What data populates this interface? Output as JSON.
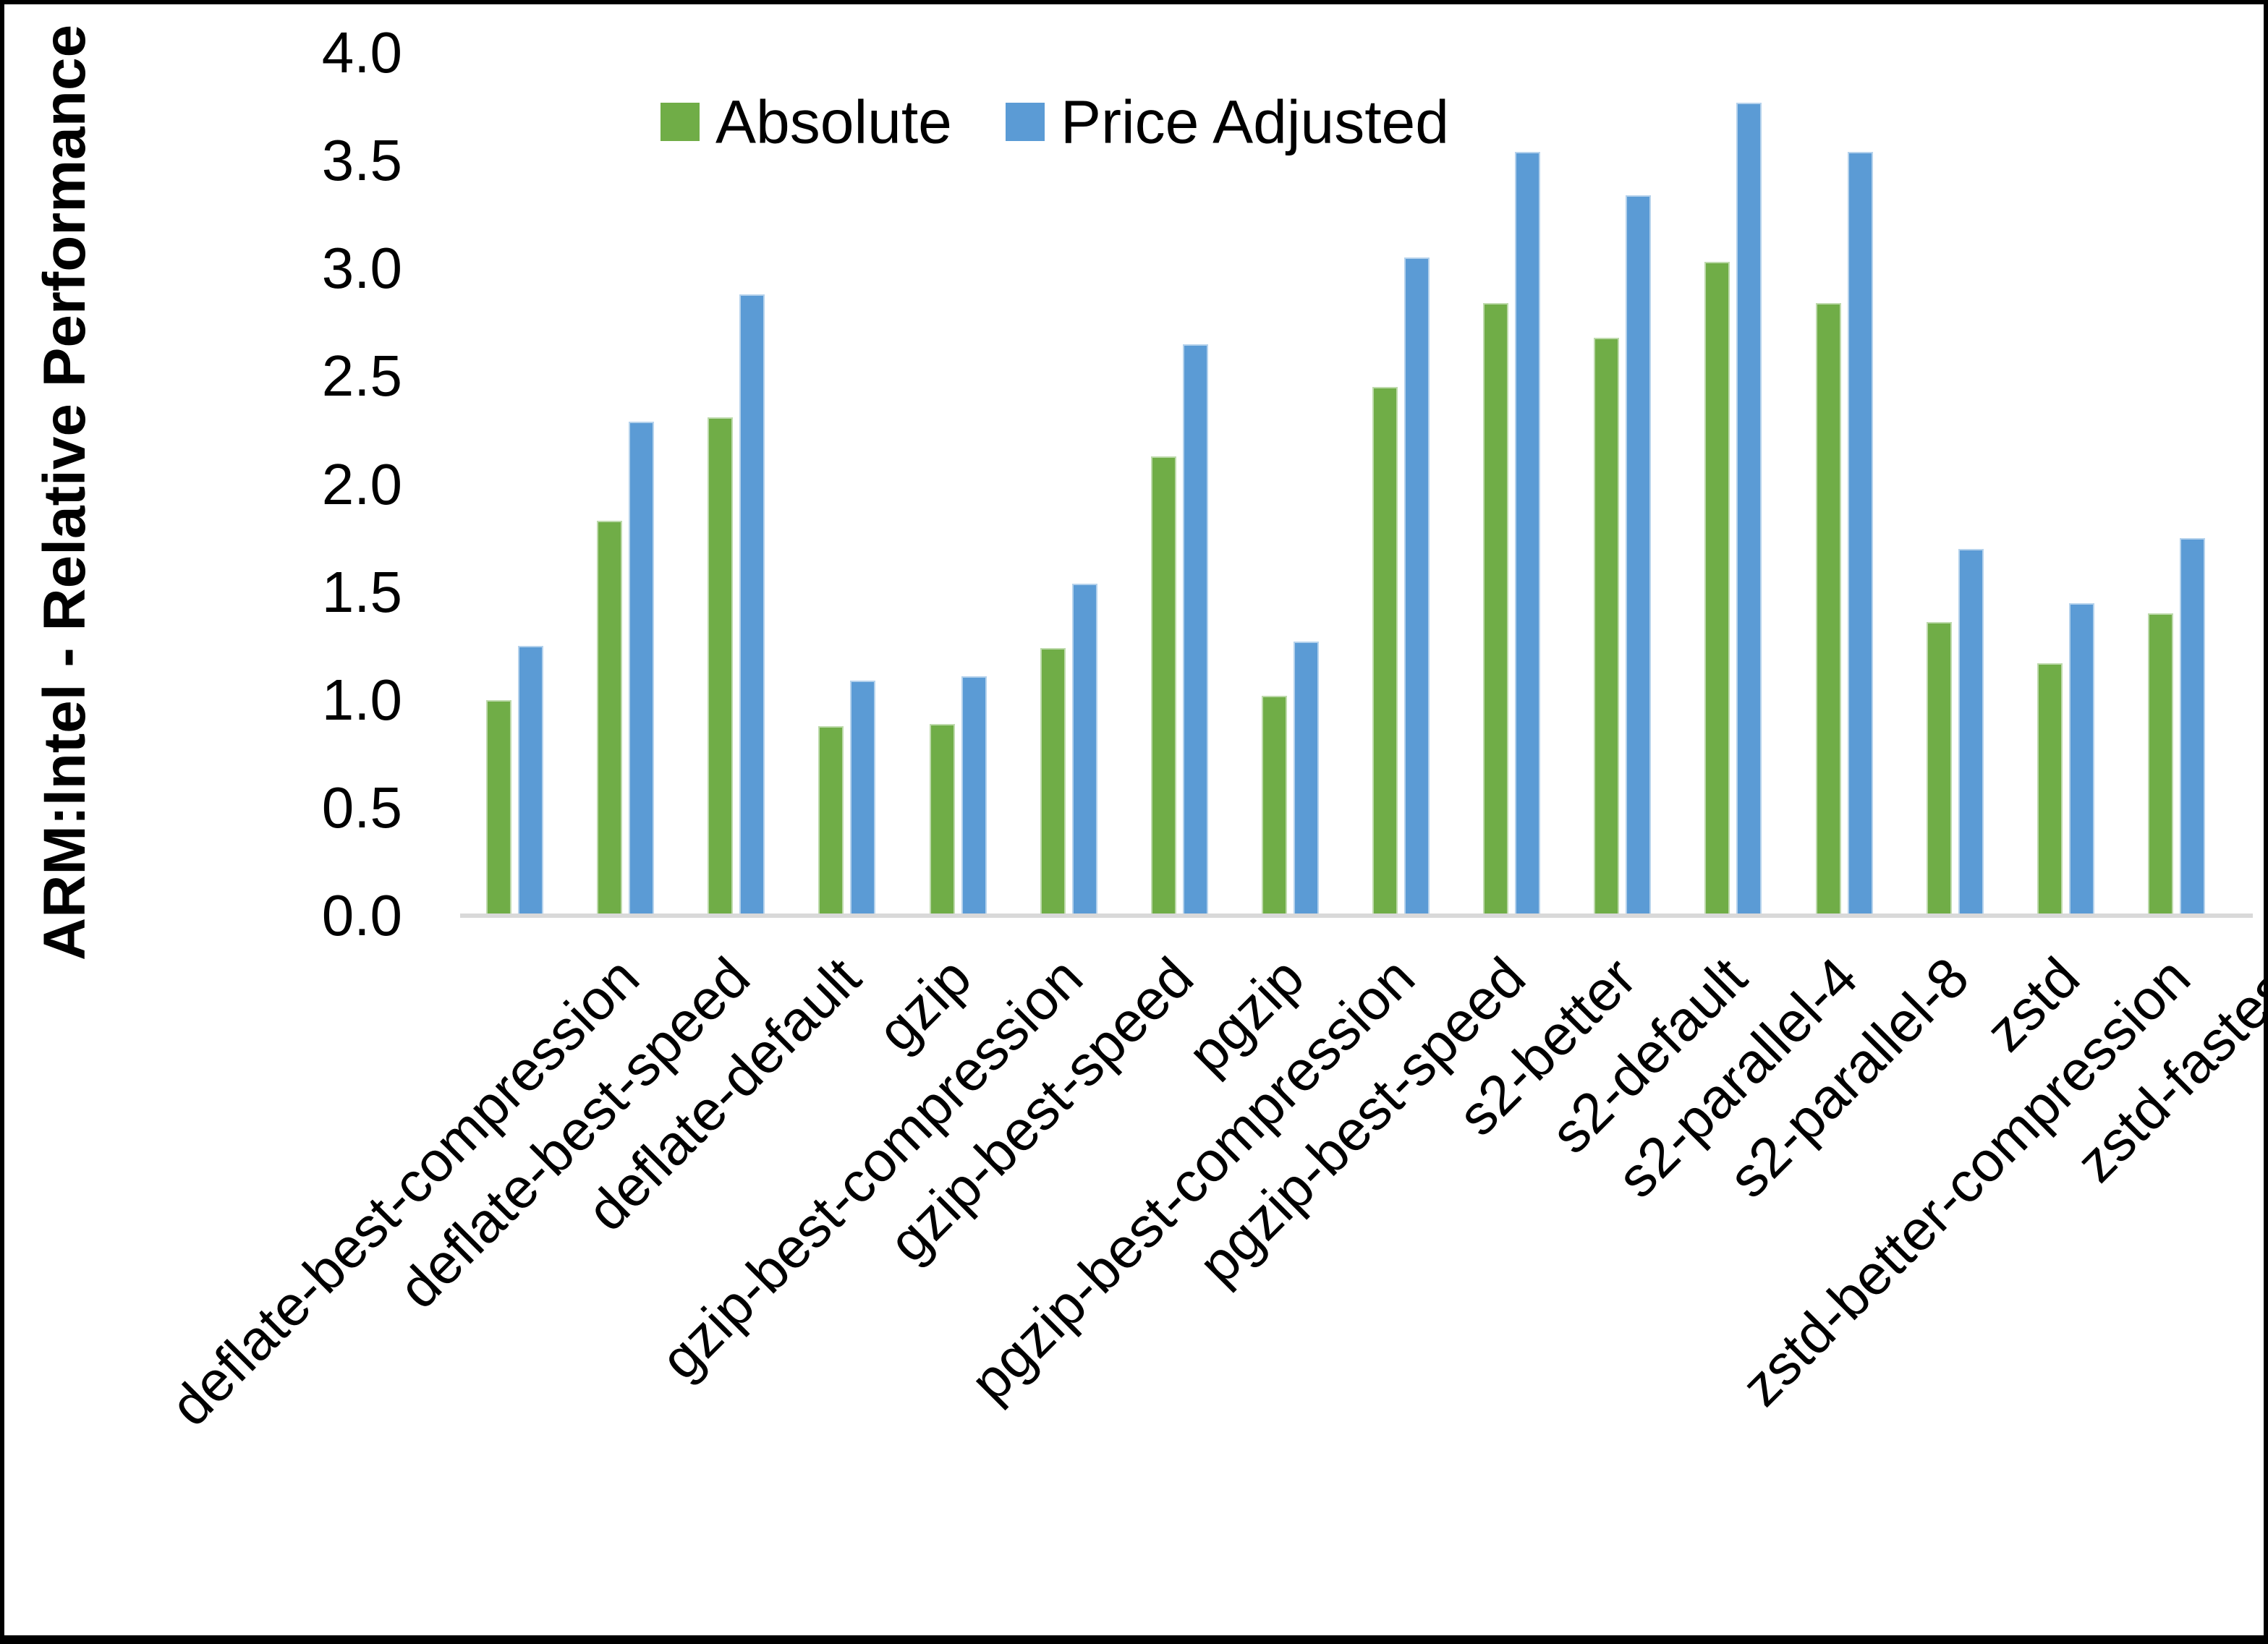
{
  "chart_data": {
    "type": "bar",
    "title": "",
    "xlabel": "",
    "ylabel": "ARM:Intel - Relative Performance",
    "ylim": [
      0.0,
      4.0
    ],
    "ytick_step": 0.5,
    "yticks": [
      "0.0",
      "0.5",
      "1.0",
      "1.5",
      "2.0",
      "2.5",
      "3.0",
      "3.5",
      "4.0"
    ],
    "grid": false,
    "legend_position": "top-center",
    "categories": [
      "deflate-best-compression",
      "deflate-best-speed",
      "deflate-default",
      "gzip",
      "gzip-best-compression",
      "gzip-best-speed",
      "pgzip",
      "pgzip-best-compression",
      "pgzip-best-speed",
      "s2-better",
      "s2-default",
      "s2-parallel-4",
      "s2-parallel-8",
      "zstd",
      "zstd-better-compression",
      "zstd-fastest"
    ],
    "series": [
      {
        "name": "Absolute",
        "color": "#70AD47",
        "values": [
          1.0,
          1.83,
          2.31,
          0.88,
          0.89,
          1.24,
          2.13,
          1.02,
          2.45,
          2.84,
          2.68,
          3.03,
          2.84,
          1.36,
          1.17,
          1.4
        ]
      },
      {
        "name": "Price Adjusted",
        "color": "#5B9BD5",
        "values": [
          1.25,
          2.29,
          2.88,
          1.09,
          1.11,
          1.54,
          2.65,
          1.27,
          3.05,
          3.54,
          3.34,
          3.77,
          3.54,
          1.7,
          1.45,
          1.75
        ]
      }
    ],
    "axis_line_color": "#D9D9D9",
    "text_color": "#000000"
  }
}
